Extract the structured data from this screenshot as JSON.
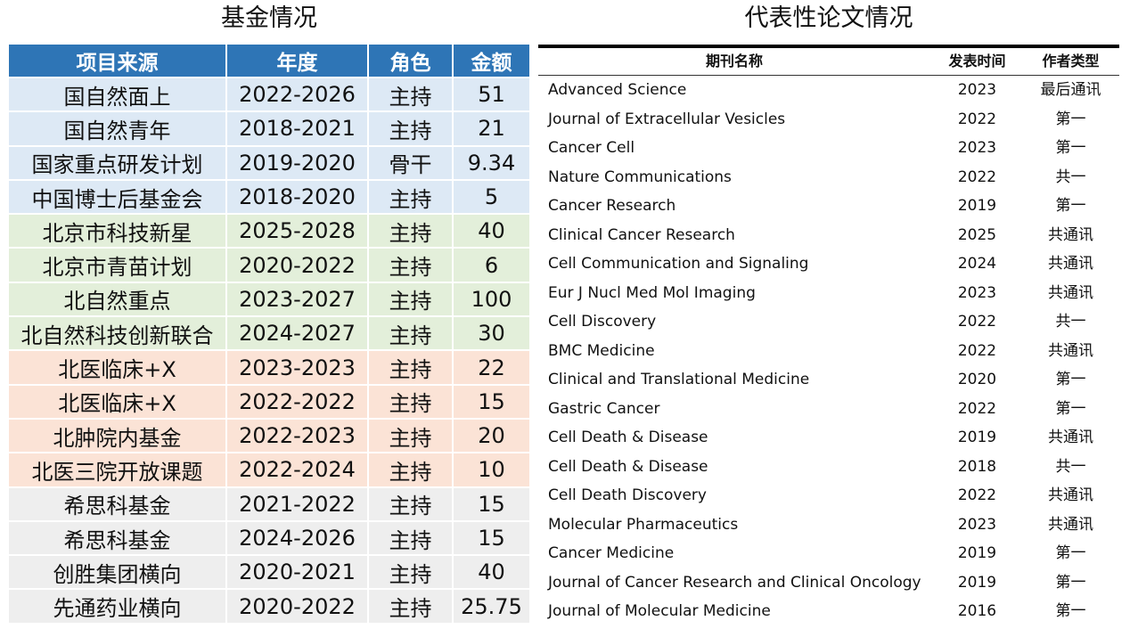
{
  "funding": {
    "title": "基金情况",
    "headers": [
      "项目来源",
      "年度",
      "角色",
      "金额"
    ],
    "rows": [
      {
        "source": "国自然面上",
        "period": "2022-2026",
        "role": "主持",
        "amount": "51",
        "group": "blue"
      },
      {
        "source": "国自然青年",
        "period": "2018-2021",
        "role": "主持",
        "amount": "21",
        "group": "blue"
      },
      {
        "source": "国家重点研发计划",
        "period": "2019-2020",
        "role": "骨干",
        "amount": "9.34",
        "group": "blue"
      },
      {
        "source": "中国博士后基金会",
        "period": "2018-2020",
        "role": "主持",
        "amount": "5",
        "group": "blue"
      },
      {
        "source": "北京市科技新星",
        "period": "2025-2028",
        "role": "主持",
        "amount": "40",
        "group": "green"
      },
      {
        "source": "北京市青苗计划",
        "period": "2020-2022",
        "role": "主持",
        "amount": "6",
        "group": "green"
      },
      {
        "source": "北自然重点",
        "period": "2023-2027",
        "role": "主持",
        "amount": "100",
        "group": "green"
      },
      {
        "source": "北自然科技创新联合",
        "period": "2024-2027",
        "role": "主持",
        "amount": "30",
        "group": "green"
      },
      {
        "source": "北医临床+X",
        "period": "2023-2023",
        "role": "主持",
        "amount": "22",
        "group": "orange"
      },
      {
        "source": "北医临床+X",
        "period": "2022-2022",
        "role": "主持",
        "amount": "15",
        "group": "orange"
      },
      {
        "source": "北肿院内基金",
        "period": "2022-2023",
        "role": "主持",
        "amount": "20",
        "group": "orange"
      },
      {
        "source": "北医三院开放课题",
        "period": "2022-2024",
        "role": "主持",
        "amount": "10",
        "group": "orange"
      },
      {
        "source": "希思科基金",
        "period": "2021-2022",
        "role": "主持",
        "amount": "15",
        "group": "gray"
      },
      {
        "source": "希思科基金",
        "period": "2024-2026",
        "role": "主持",
        "amount": "15",
        "group": "gray"
      },
      {
        "source": "创胜集团横向",
        "period": "2020-2021",
        "role": "主持",
        "amount": "40",
        "group": "gray"
      },
      {
        "source": "先通药业横向",
        "period": "2020-2022",
        "role": "主持",
        "amount": "25.75",
        "group": "gray"
      }
    ]
  },
  "papers": {
    "title": "代表性论文情况",
    "headers": [
      "期刊名称",
      "发表时间",
      "作者类型"
    ],
    "rows": [
      {
        "journal": "Advanced Science",
        "year": "2023",
        "type": "最后通讯"
      },
      {
        "journal": "Journal of Extracellular Vesicles",
        "year": "2022",
        "type": "第一"
      },
      {
        "journal": "Cancer Cell",
        "year": "2023",
        "type": "第一"
      },
      {
        "journal": "Nature Communications",
        "year": "2022",
        "type": "共一"
      },
      {
        "journal": "Cancer Research",
        "year": "2019",
        "type": "第一"
      },
      {
        "journal": "Clinical Cancer Research",
        "year": "2025",
        "type": "共通讯"
      },
      {
        "journal": "Cell Communication and Signaling",
        "year": "2024",
        "type": "共通讯"
      },
      {
        "journal": "Eur J Nucl Med Mol Imaging",
        "year": "2023",
        "type": "共通讯"
      },
      {
        "journal": "Cell Discovery",
        "year": "2022",
        "type": "共一"
      },
      {
        "journal": "BMC Medicine",
        "year": "2022",
        "type": "共通讯"
      },
      {
        "journal": "Clinical and Translational Medicine",
        "year": "2020",
        "type": "第一"
      },
      {
        "journal": "Gastric Cancer",
        "year": "2022",
        "type": "第一"
      },
      {
        "journal": "Cell Death & Disease",
        "year": "2019",
        "type": "共通讯"
      },
      {
        "journal": "Cell Death & Disease",
        "year": "2018",
        "type": "共一"
      },
      {
        "journal": "Cell Death Discovery",
        "year": "2022",
        "type": "共通讯"
      },
      {
        "journal": "Molecular Pharmaceutics",
        "year": "2023",
        "type": "共通讯"
      },
      {
        "journal": "Cancer Medicine",
        "year": "2019",
        "type": "第一"
      },
      {
        "journal": "Journal of Cancer Research and Clinical Oncology",
        "year": "2019",
        "type": "第一"
      },
      {
        "journal": "Journal of Molecular Medicine",
        "year": "2016",
        "type": "第一"
      }
    ]
  },
  "colors": {
    "header_blue": "#2e75b6",
    "row_blue": "#dde9f5",
    "row_green": "#e3efda",
    "row_orange": "#fbe3d6",
    "row_gray": "#eeeeee"
  }
}
